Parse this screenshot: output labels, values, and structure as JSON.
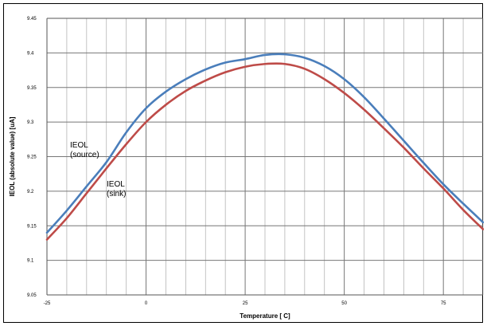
{
  "chart_data": {
    "type": "line",
    "title": "",
    "xlabel": "Temperature [ C]",
    "ylabel": "IEOL (absolute value) [uA]",
    "xlim": [
      -25,
      85
    ],
    "ylim": [
      9.05,
      9.45
    ],
    "xticks": [
      -25,
      0,
      25,
      50,
      75
    ],
    "xtick_labels": [
      "-25",
      "0",
      "25",
      "50",
      "75"
    ],
    "yticks": [
      9.05,
      9.1,
      9.15,
      9.2,
      9.25,
      9.3,
      9.35,
      9.4,
      9.45
    ],
    "ytick_labels": [
      "9.05",
      "9.1",
      "9.15",
      "9.2",
      "9.25",
      "9.3",
      "9.35",
      "9.4",
      "9.45"
    ],
    "grid": true,
    "series": [
      {
        "name": "IEOL (source)",
        "color": "#4a7ebb",
        "x": [
          -25,
          -20,
          -15,
          -10,
          -5,
          0,
          5,
          10,
          15,
          20,
          25,
          30,
          35,
          40,
          45,
          50,
          55,
          60,
          65,
          70,
          75,
          80,
          85
        ],
        "y": [
          9.14,
          9.172,
          9.207,
          9.242,
          9.285,
          9.32,
          9.344,
          9.362,
          9.376,
          9.386,
          9.391,
          9.397,
          9.398,
          9.393,
          9.381,
          9.362,
          9.336,
          9.305,
          9.273,
          9.241,
          9.21,
          9.182,
          9.155
        ]
      },
      {
        "name": "IEOL (sink)",
        "color": "#be4b48",
        "x": [
          -25,
          -20,
          -15,
          -10,
          -5,
          0,
          5,
          10,
          15,
          20,
          25,
          30,
          35,
          40,
          45,
          50,
          55,
          60,
          65,
          70,
          75,
          80,
          85
        ],
        "y": [
          9.13,
          9.161,
          9.197,
          9.233,
          9.268,
          9.3,
          9.325,
          9.345,
          9.36,
          9.372,
          9.38,
          9.384,
          9.384,
          9.377,
          9.362,
          9.342,
          9.318,
          9.291,
          9.263,
          9.233,
          9.204,
          9.173,
          9.145
        ]
      }
    ],
    "annotations": [
      {
        "series": "IEOL (source)",
        "lines": [
          "IEOL",
          "(source)"
        ]
      },
      {
        "series": "IEOL (sink)",
        "lines": [
          "IEOL",
          "(sink)"
        ]
      }
    ]
  }
}
